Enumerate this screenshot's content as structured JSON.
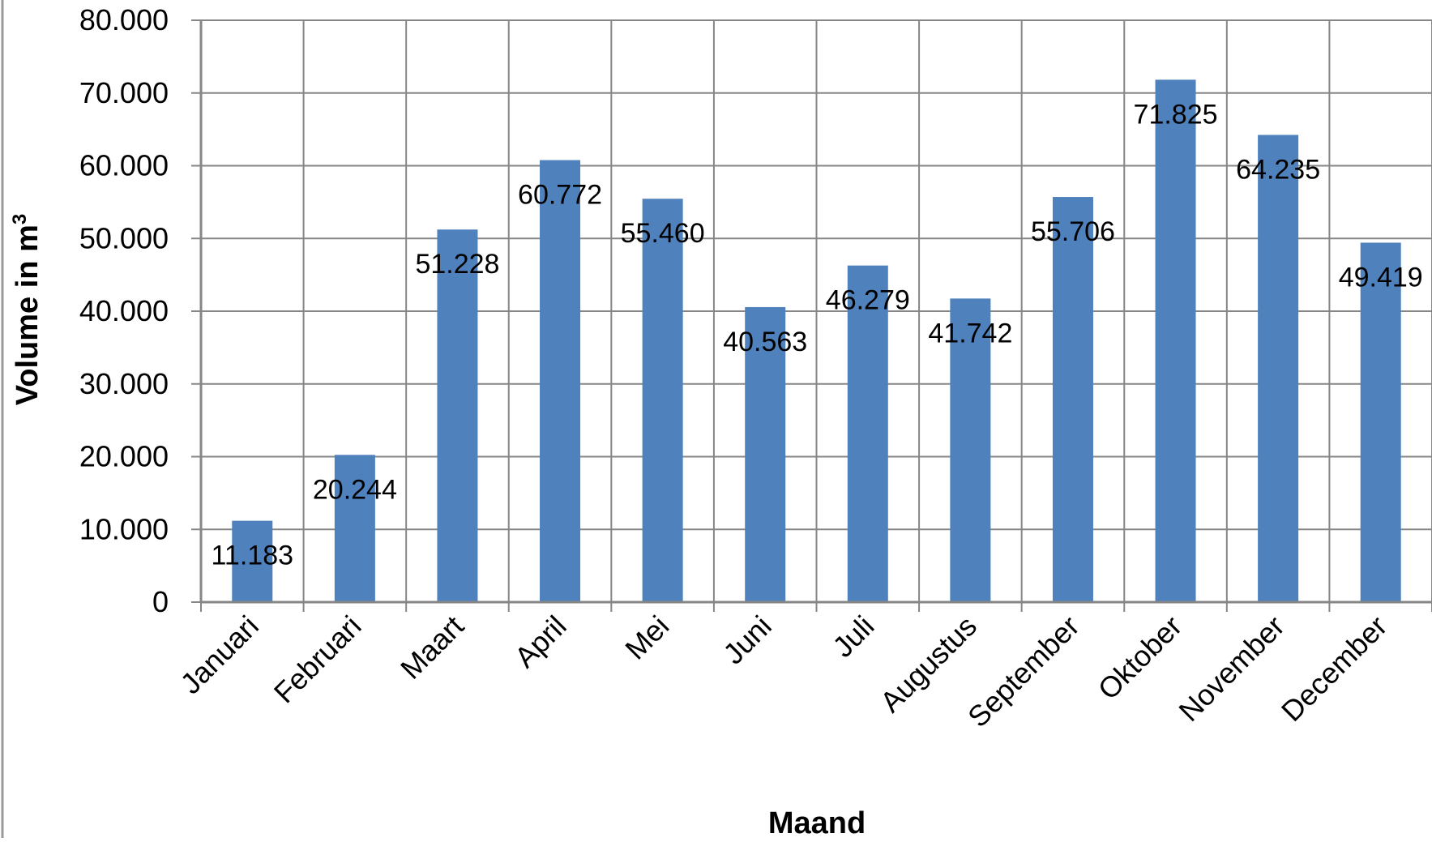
{
  "chart_data": {
    "type": "bar",
    "title": "",
    "xlabel": "Maand",
    "ylabel": "Volume in m",
    "ylabel_superscript": "3",
    "categories": [
      "Januari",
      "Februari",
      "Maart",
      "April",
      "Mei",
      "Juni",
      "Juli",
      "Augustus",
      "September",
      "Oktober",
      "November",
      "December"
    ],
    "values": [
      11183,
      20244,
      51228,
      60772,
      55460,
      40563,
      46279,
      41742,
      55706,
      71825,
      64235,
      49419
    ],
    "data_labels": [
      "11.183",
      "20.244",
      "51.228",
      "60.772",
      "55.460",
      "40.563",
      "46.279",
      "41.742",
      "55.706",
      "71.825",
      "64.235",
      "49.419"
    ],
    "ylim": [
      0,
      80000
    ],
    "yticks": [
      0,
      10000,
      20000,
      30000,
      40000,
      50000,
      60000,
      70000,
      80000
    ],
    "ytick_labels": [
      "0",
      "10.000",
      "20.000",
      "30.000",
      "40.000",
      "50.000",
      "60.000",
      "70.000",
      "80.000"
    ],
    "grid": true,
    "legend": "none",
    "bar_color": "#4F81BD",
    "grid_color": "#868686"
  }
}
